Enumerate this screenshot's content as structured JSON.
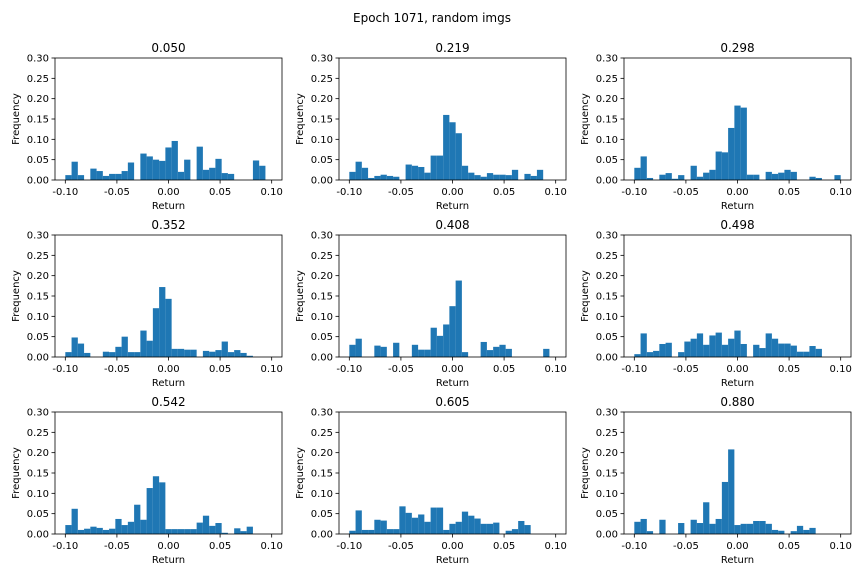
{
  "figure": {
    "suptitle": "Epoch 1071, random imgs",
    "bar_color": "#1f77b4"
  },
  "chart_data": [
    {
      "type": "bar",
      "title": "0.050",
      "xlabel": "Return",
      "ylabel": "Frequency",
      "xlim": [
        -0.11,
        0.11
      ],
      "ylim": [
        0,
        0.3
      ],
      "xticks": [
        "-0.10",
        "-0.05",
        "0.00",
        "0.05",
        "0.10"
      ],
      "yticks": [
        "0.00",
        "0.05",
        "0.10",
        "0.15",
        "0.20",
        "0.25",
        "0.30"
      ],
      "bin_range": [
        -0.1,
        0.1
      ],
      "values": [
        0.012,
        0.045,
        0.012,
        0.0,
        0.028,
        0.022,
        0.01,
        0.015,
        0.015,
        0.022,
        0.043,
        0.0,
        0.065,
        0.058,
        0.05,
        0.047,
        0.08,
        0.096,
        0.02,
        0.05,
        0.0,
        0.082,
        0.025,
        0.03,
        0.052,
        0.017,
        0.015,
        0.0,
        0.0,
        0.0,
        0.048,
        0.035,
        0.0
      ]
    },
    {
      "type": "bar",
      "title": "0.219",
      "xlabel": "Return",
      "ylabel": "Frequency",
      "xlim": [
        -0.11,
        0.11
      ],
      "ylim": [
        0,
        0.3
      ],
      "xticks": [
        "-0.10",
        "-0.05",
        "0.00",
        "0.05",
        "0.10"
      ],
      "yticks": [
        "0.00",
        "0.05",
        "0.10",
        "0.15",
        "0.20",
        "0.25",
        "0.30"
      ],
      "bin_range": [
        -0.1,
        0.1
      ],
      "values": [
        0.02,
        0.045,
        0.03,
        0.005,
        0.01,
        0.013,
        0.01,
        0.008,
        0.0,
        0.038,
        0.035,
        0.032,
        0.018,
        0.06,
        0.06,
        0.16,
        0.142,
        0.115,
        0.035,
        0.018,
        0.012,
        0.008,
        0.017,
        0.013,
        0.013,
        0.012,
        0.025,
        0.0,
        0.015,
        0.01,
        0.025,
        0.0,
        0.0
      ]
    },
    {
      "type": "bar",
      "title": "0.298",
      "xlabel": "Return",
      "ylabel": "Frequency",
      "xlim": [
        -0.11,
        0.11
      ],
      "ylim": [
        0,
        0.3
      ],
      "xticks": [
        "-0.10",
        "-0.05",
        "0.00",
        "0.05",
        "0.10"
      ],
      "yticks": [
        "0.00",
        "0.05",
        "0.10",
        "0.15",
        "0.20",
        "0.25",
        "0.30"
      ],
      "bin_range": [
        -0.1,
        0.1
      ],
      "values": [
        0.03,
        0.058,
        0.005,
        0.0,
        0.013,
        0.017,
        0.003,
        0.012,
        0.0,
        0.035,
        0.008,
        0.018,
        0.025,
        0.07,
        0.068,
        0.128,
        0.183,
        0.178,
        0.013,
        0.013,
        0.0,
        0.02,
        0.015,
        0.018,
        0.025,
        0.02,
        0.0,
        0.0,
        0.008,
        0.005,
        0.0,
        0.0,
        0.012
      ]
    },
    {
      "type": "bar",
      "title": "0.352",
      "xlabel": "Return",
      "ylabel": "Frequency",
      "xlim": [
        -0.11,
        0.11
      ],
      "ylim": [
        0,
        0.3
      ],
      "xticks": [
        "-0.10",
        "-0.05",
        "0.00",
        "0.05",
        "0.10"
      ],
      "yticks": [
        "0.00",
        "0.05",
        "0.10",
        "0.15",
        "0.20",
        "0.25",
        "0.30"
      ],
      "bin_range": [
        -0.1,
        0.1
      ],
      "values": [
        0.012,
        0.048,
        0.033,
        0.01,
        0.0,
        0.0,
        0.013,
        0.012,
        0.025,
        0.05,
        0.012,
        0.012,
        0.065,
        0.04,
        0.12,
        0.172,
        0.143,
        0.02,
        0.02,
        0.018,
        0.018,
        0.0,
        0.015,
        0.013,
        0.017,
        0.038,
        0.012,
        0.017,
        0.01,
        0.003,
        0.0,
        0.0,
        0.0
      ]
    },
    {
      "type": "bar",
      "title": "0.408",
      "xlabel": "Return",
      "ylabel": "Frequency",
      "xlim": [
        -0.11,
        0.11
      ],
      "ylim": [
        0,
        0.3
      ],
      "xticks": [
        "-0.10",
        "-0.05",
        "0.00",
        "0.05",
        "0.10"
      ],
      "yticks": [
        "0.00",
        "0.05",
        "0.10",
        "0.15",
        "0.20",
        "0.25",
        "0.30"
      ],
      "bin_range": [
        -0.1,
        0.1
      ],
      "values": [
        0.03,
        0.045,
        0.0,
        0.0,
        0.028,
        0.025,
        0.0,
        0.035,
        0.0,
        0.0,
        0.03,
        0.018,
        0.018,
        0.072,
        0.052,
        0.08,
        0.125,
        0.188,
        0.012,
        0.0,
        0.0,
        0.037,
        0.017,
        0.025,
        0.03,
        0.02,
        0.0,
        0.0,
        0.0,
        0.0,
        0.0,
        0.02,
        0.0
      ]
    },
    {
      "type": "bar",
      "title": "0.498",
      "xlabel": "Return",
      "ylabel": "Frequency",
      "xlim": [
        -0.11,
        0.11
      ],
      "ylim": [
        0,
        0.3
      ],
      "xticks": [
        "-0.10",
        "-0.05",
        "0.00",
        "0.05",
        "0.10"
      ],
      "yticks": [
        "0.00",
        "0.05",
        "0.10",
        "0.15",
        "0.20",
        "0.25",
        "0.30"
      ],
      "bin_range": [
        -0.1,
        0.1
      ],
      "values": [
        0.007,
        0.058,
        0.012,
        0.015,
        0.032,
        0.035,
        0.0,
        0.012,
        0.038,
        0.045,
        0.058,
        0.03,
        0.053,
        0.06,
        0.03,
        0.045,
        0.065,
        0.032,
        0.0,
        0.03,
        0.022,
        0.058,
        0.045,
        0.033,
        0.033,
        0.028,
        0.013,
        0.013,
        0.027,
        0.02,
        0.0,
        0.0,
        0.0
      ]
    },
    {
      "type": "bar",
      "title": "0.542",
      "xlabel": "Return",
      "ylabel": "Frequency",
      "xlim": [
        -0.11,
        0.11
      ],
      "ylim": [
        0,
        0.3
      ],
      "xticks": [
        "-0.10",
        "-0.05",
        "0.00",
        "0.05",
        "0.10"
      ],
      "yticks": [
        "0.00",
        "0.05",
        "0.10",
        "0.15",
        "0.20",
        "0.25",
        "0.30"
      ],
      "bin_range": [
        -0.1,
        0.1
      ],
      "values": [
        0.022,
        0.062,
        0.01,
        0.013,
        0.018,
        0.015,
        0.01,
        0.013,
        0.037,
        0.022,
        0.03,
        0.072,
        0.035,
        0.113,
        0.142,
        0.127,
        0.012,
        0.012,
        0.012,
        0.012,
        0.012,
        0.028,
        0.045,
        0.02,
        0.027,
        0.003,
        0.0,
        0.014,
        0.007,
        0.018,
        0.0,
        0.0,
        0.0
      ]
    },
    {
      "type": "bar",
      "title": "0.605",
      "xlabel": "Return",
      "ylabel": "Frequency",
      "xlim": [
        -0.11,
        0.11
      ],
      "ylim": [
        0,
        0.3
      ],
      "xticks": [
        "-0.10",
        "-0.05",
        "0.00",
        "0.05",
        "0.10"
      ],
      "yticks": [
        "0.00",
        "0.05",
        "0.10",
        "0.15",
        "0.20",
        "0.25",
        "0.30"
      ],
      "bin_range": [
        -0.1,
        0.1
      ],
      "values": [
        0.008,
        0.058,
        0.01,
        0.01,
        0.035,
        0.033,
        0.012,
        0.012,
        0.068,
        0.052,
        0.04,
        0.048,
        0.03,
        0.065,
        0.065,
        0.01,
        0.025,
        0.03,
        0.055,
        0.045,
        0.038,
        0.025,
        0.025,
        0.028,
        0.0,
        0.008,
        0.012,
        0.032,
        0.022,
        0.0,
        0.0,
        0.0,
        0.0
      ]
    },
    {
      "type": "bar",
      "title": "0.880",
      "xlabel": "Return",
      "ylabel": "Frequency",
      "xlim": [
        -0.11,
        0.11
      ],
      "ylim": [
        0,
        0.3
      ],
      "xticks": [
        "-0.10",
        "-0.05",
        "0.00",
        "0.05",
        "0.10"
      ],
      "yticks": [
        "0.00",
        "0.05",
        "0.10",
        "0.15",
        "0.20",
        "0.25",
        "0.30"
      ],
      "bin_range": [
        -0.1,
        0.1
      ],
      "values": [
        0.03,
        0.037,
        0.007,
        0.0,
        0.035,
        0.0,
        0.0,
        0.027,
        0.0,
        0.035,
        0.027,
        0.078,
        0.025,
        0.037,
        0.128,
        0.208,
        0.022,
        0.025,
        0.025,
        0.032,
        0.032,
        0.025,
        0.01,
        0.008,
        0.0,
        0.007,
        0.02,
        0.01,
        0.015,
        0.0,
        0.0,
        0.0,
        0.0
      ]
    }
  ]
}
